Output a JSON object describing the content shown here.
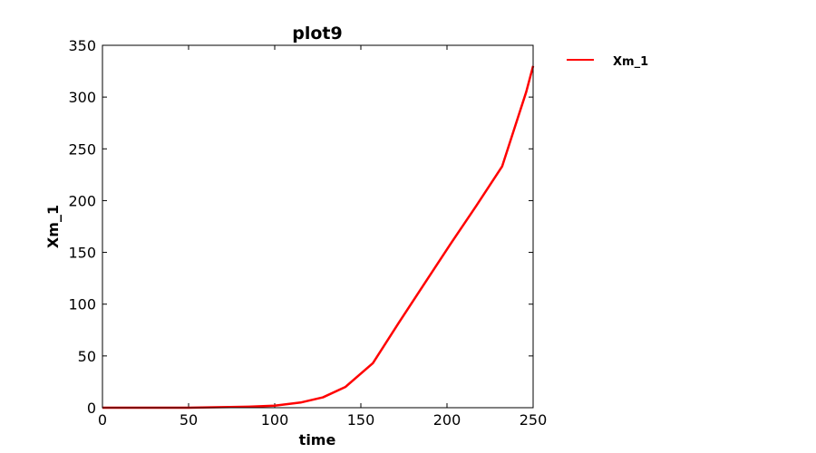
{
  "chart_data": {
    "type": "line",
    "title": "plot9",
    "xlabel": "time",
    "ylabel": "Xm_1",
    "xlim": [
      0,
      250
    ],
    "ylim": [
      0,
      350
    ],
    "xticks": [
      "0",
      "50",
      "100",
      "150",
      "200",
      "250"
    ],
    "yticks": [
      "0",
      "50",
      "100",
      "150",
      "200",
      "250",
      "300",
      "350"
    ],
    "grid": false,
    "legend_position": "outside-top-right",
    "series": [
      {
        "name": "Xm_1",
        "color": "#ff0000",
        "x": [
          0,
          50,
          70,
          85,
          100,
          115,
          128,
          141,
          157,
          172,
          187,
          202,
          217,
          232,
          246,
          250
        ],
        "y": [
          0,
          0,
          0.5,
          1,
          2,
          5,
          10,
          20,
          43,
          82,
          120,
          158,
          195,
          233,
          305,
          330
        ]
      }
    ]
  }
}
